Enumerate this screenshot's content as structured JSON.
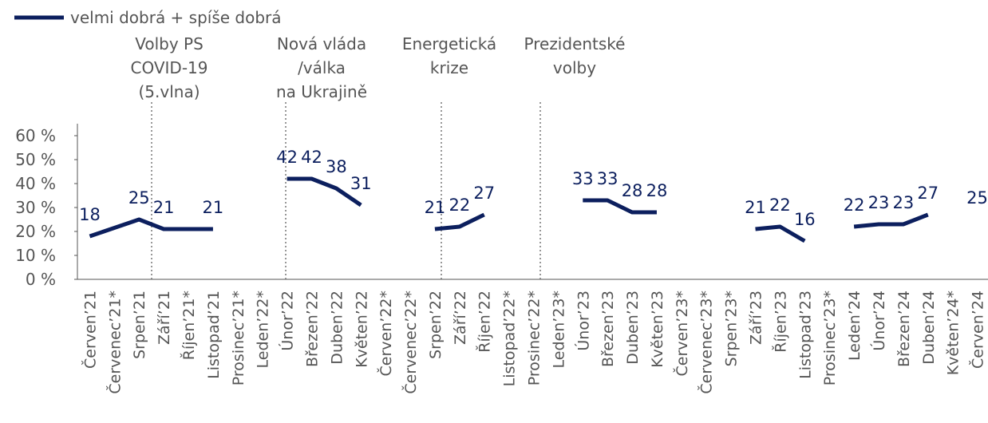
{
  "chart_data": {
    "type": "line",
    "categories": [
      "Červen’21",
      "Červenec’21*",
      "Srpen’21",
      "Září’21",
      "Říjen’21*",
      "Listopad’21",
      "Prosinec’21*",
      "Leden’22*",
      "Únor’22",
      "Březen’22",
      "Duben’22",
      "Květen’22",
      "Červen’22*",
      "Červenec’22*",
      "Srpen’22",
      "Září’22",
      "Říjen’22",
      "Listopad’22*",
      "Prosinec’22*",
      "Leden’23*",
      "Únor’23",
      "Březen’23",
      "Duben’23",
      "Květen’23",
      "Červen’23*",
      "Červenec’23*",
      "Srpen’23*",
      "Září’23",
      "Říjen’23",
      "Listopad’23",
      "Prosinec’23*",
      "Leden’24",
      "Únor’24",
      "Březen’24",
      "Duben’24",
      "Květen’24*",
      "Červen’24"
    ],
    "series": [
      {
        "name": "velmi dobrá + spíše dobrá",
        "color": "#0c1f5e",
        "values": [
          18,
          21.5,
          25,
          21,
          21,
          21,
          null,
          null,
          42,
          42,
          38,
          31,
          null,
          null,
          21,
          22,
          27,
          null,
          null,
          null,
          33,
          33,
          28,
          28,
          null,
          null,
          null,
          21,
          22,
          16,
          null,
          22,
          23,
          23,
          27,
          null,
          25
        ],
        "value_labels": [
          "18",
          null,
          "25",
          "21",
          null,
          "21",
          null,
          null,
          "42",
          "42",
          "38",
          "31",
          null,
          null,
          "21",
          "22",
          "27",
          null,
          null,
          null,
          "33",
          "33",
          "28",
          "28",
          null,
          null,
          null,
          "21",
          "22",
          "16",
          null,
          "22",
          "23",
          "23",
          "27",
          null,
          "25"
        ]
      }
    ],
    "ylim": [
      0,
      60
    ],
    "yticks": [
      {
        "value": 0,
        "label": "0 %"
      },
      {
        "value": 10,
        "label": "10 %"
      },
      {
        "value": 20,
        "label": "20 %"
      },
      {
        "value": 30,
        "label": "30 %"
      },
      {
        "value": 40,
        "label": "40 %"
      },
      {
        "value": 50,
        "label": "50 %"
      },
      {
        "value": 60,
        "label": "60 %"
      }
    ],
    "annotations": [
      {
        "lines": [
          "Volby PS",
          "COVID-19",
          "(5.vlna)"
        ]
      },
      {
        "lines": [
          "Nová vláda",
          "/válka",
          "na Ukrajině"
        ]
      },
      {
        "lines": [
          "Energetická",
          "krize"
        ]
      },
      {
        "lines": [
          "Prezidentské",
          "volby"
        ]
      }
    ],
    "legend": "top-left"
  }
}
